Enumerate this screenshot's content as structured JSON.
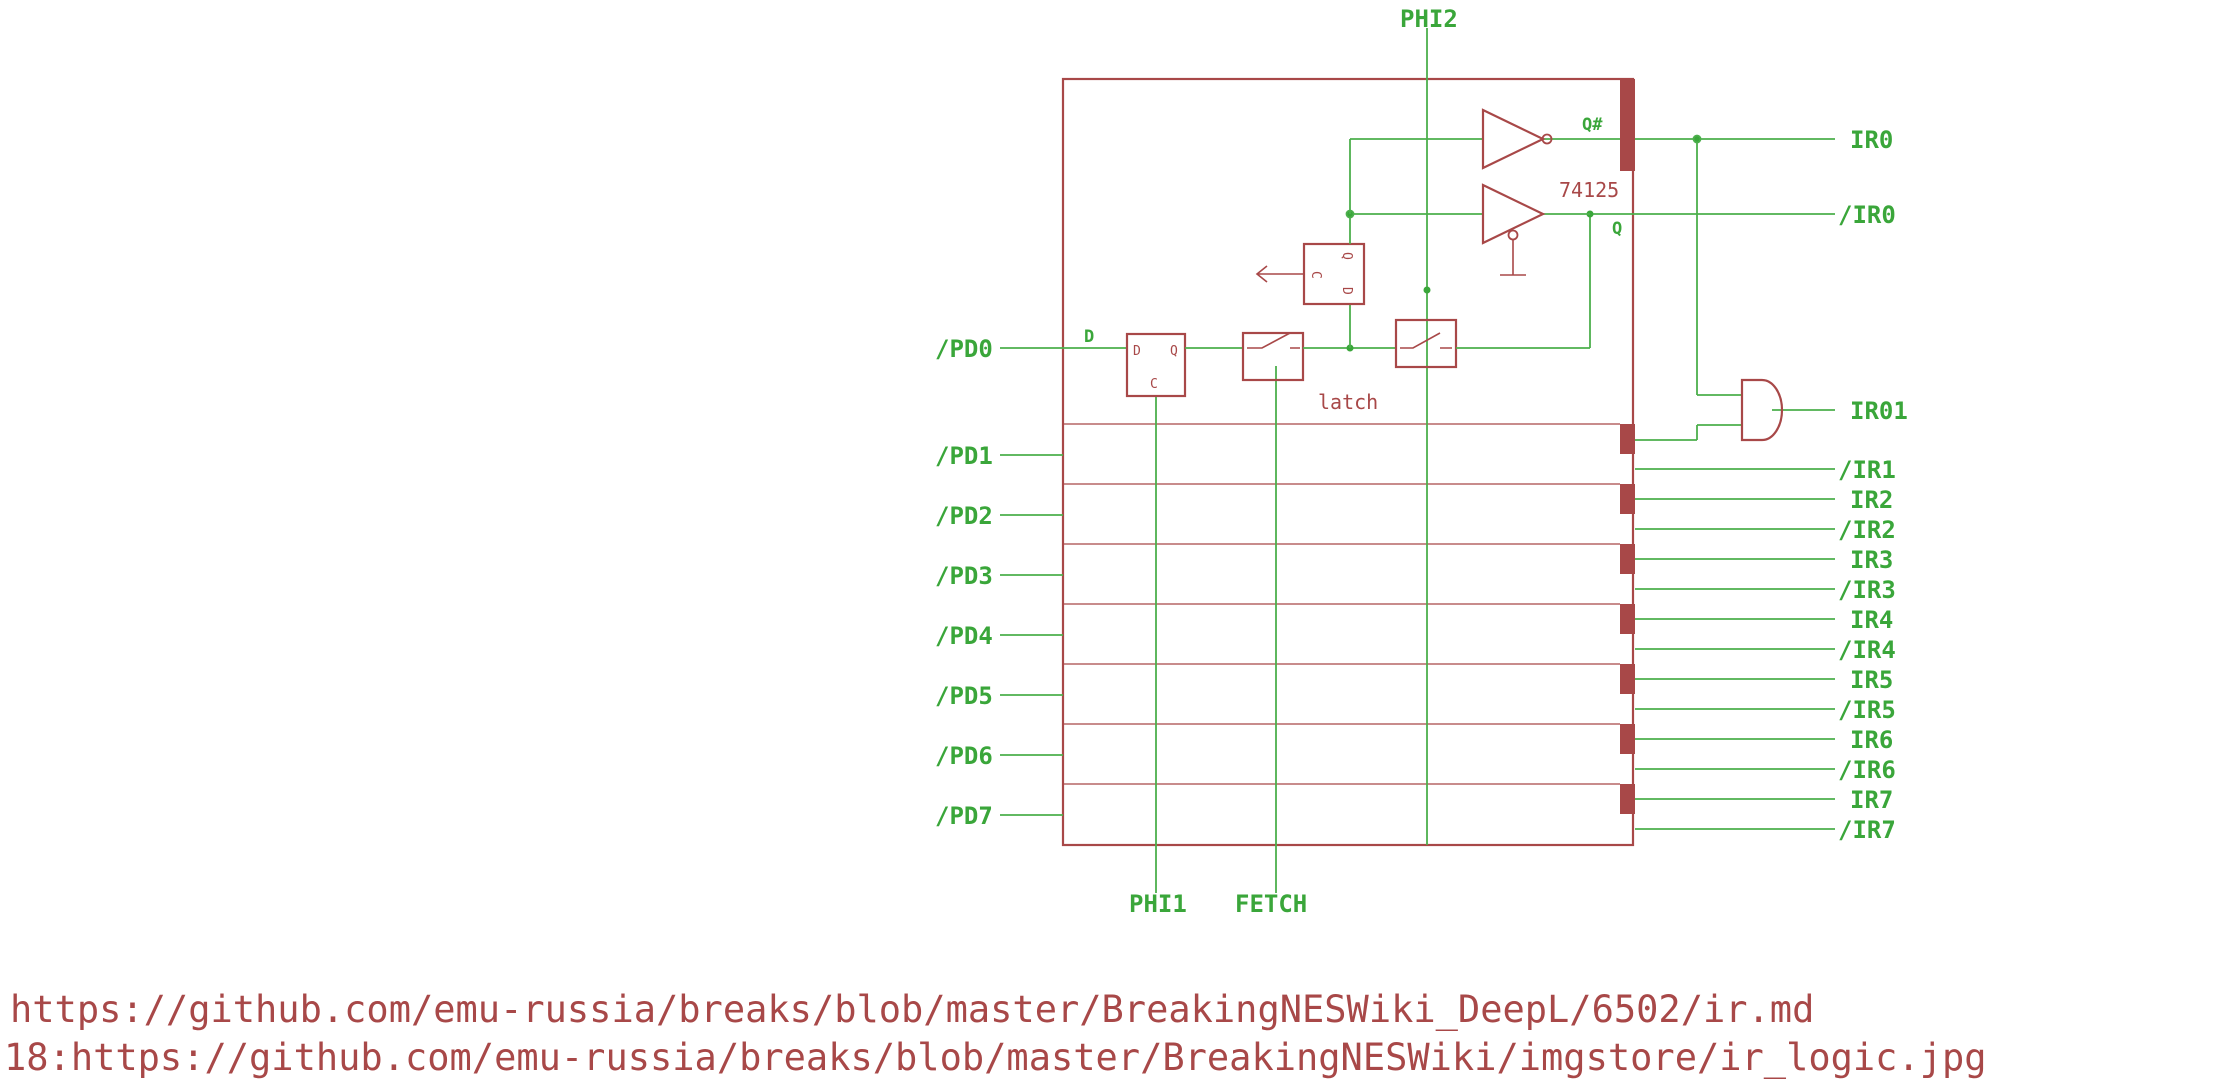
{
  "signals": {
    "phi2": "PHI2",
    "phi1": "PHI1",
    "fetch": "FETCH",
    "inputs": [
      "/PD0",
      "/PD1",
      "/PD2",
      "/PD3",
      "/PD4",
      "/PD5",
      "/PD6",
      "/PD7"
    ],
    "outputs": [
      "IR0",
      "/IR0",
      "IR01",
      "/IR1",
      "IR2",
      "/IR2",
      "IR3",
      "/IR3",
      "IR4",
      "/IR4",
      "IR5",
      "/IR5",
      "IR6",
      "/IR6",
      "IR7",
      "/IR7"
    ]
  },
  "internal": {
    "q_hash": "Q#",
    "q": "Q",
    "d": "D",
    "chip": "74125",
    "latch": "latch",
    "ff_d": "D",
    "ff_q": "Q",
    "ff_c": "C",
    "ff2_c": "C",
    "ff2_q": "Q",
    "ff2_d": "D"
  },
  "footer": {
    "line1": "https://github.com/emu-russia/breaks/blob/master/BreakingNESWiki_DeepL/6502/ir.md",
    "line2": "18:https://github.com/emu-russia/breaks/blob/master/BreakingNESWiki/imgstore/ir_logic.jpg"
  },
  "colors": {
    "wire": "#4caf4c",
    "component": "#a84848",
    "label": "#3aa63a"
  }
}
